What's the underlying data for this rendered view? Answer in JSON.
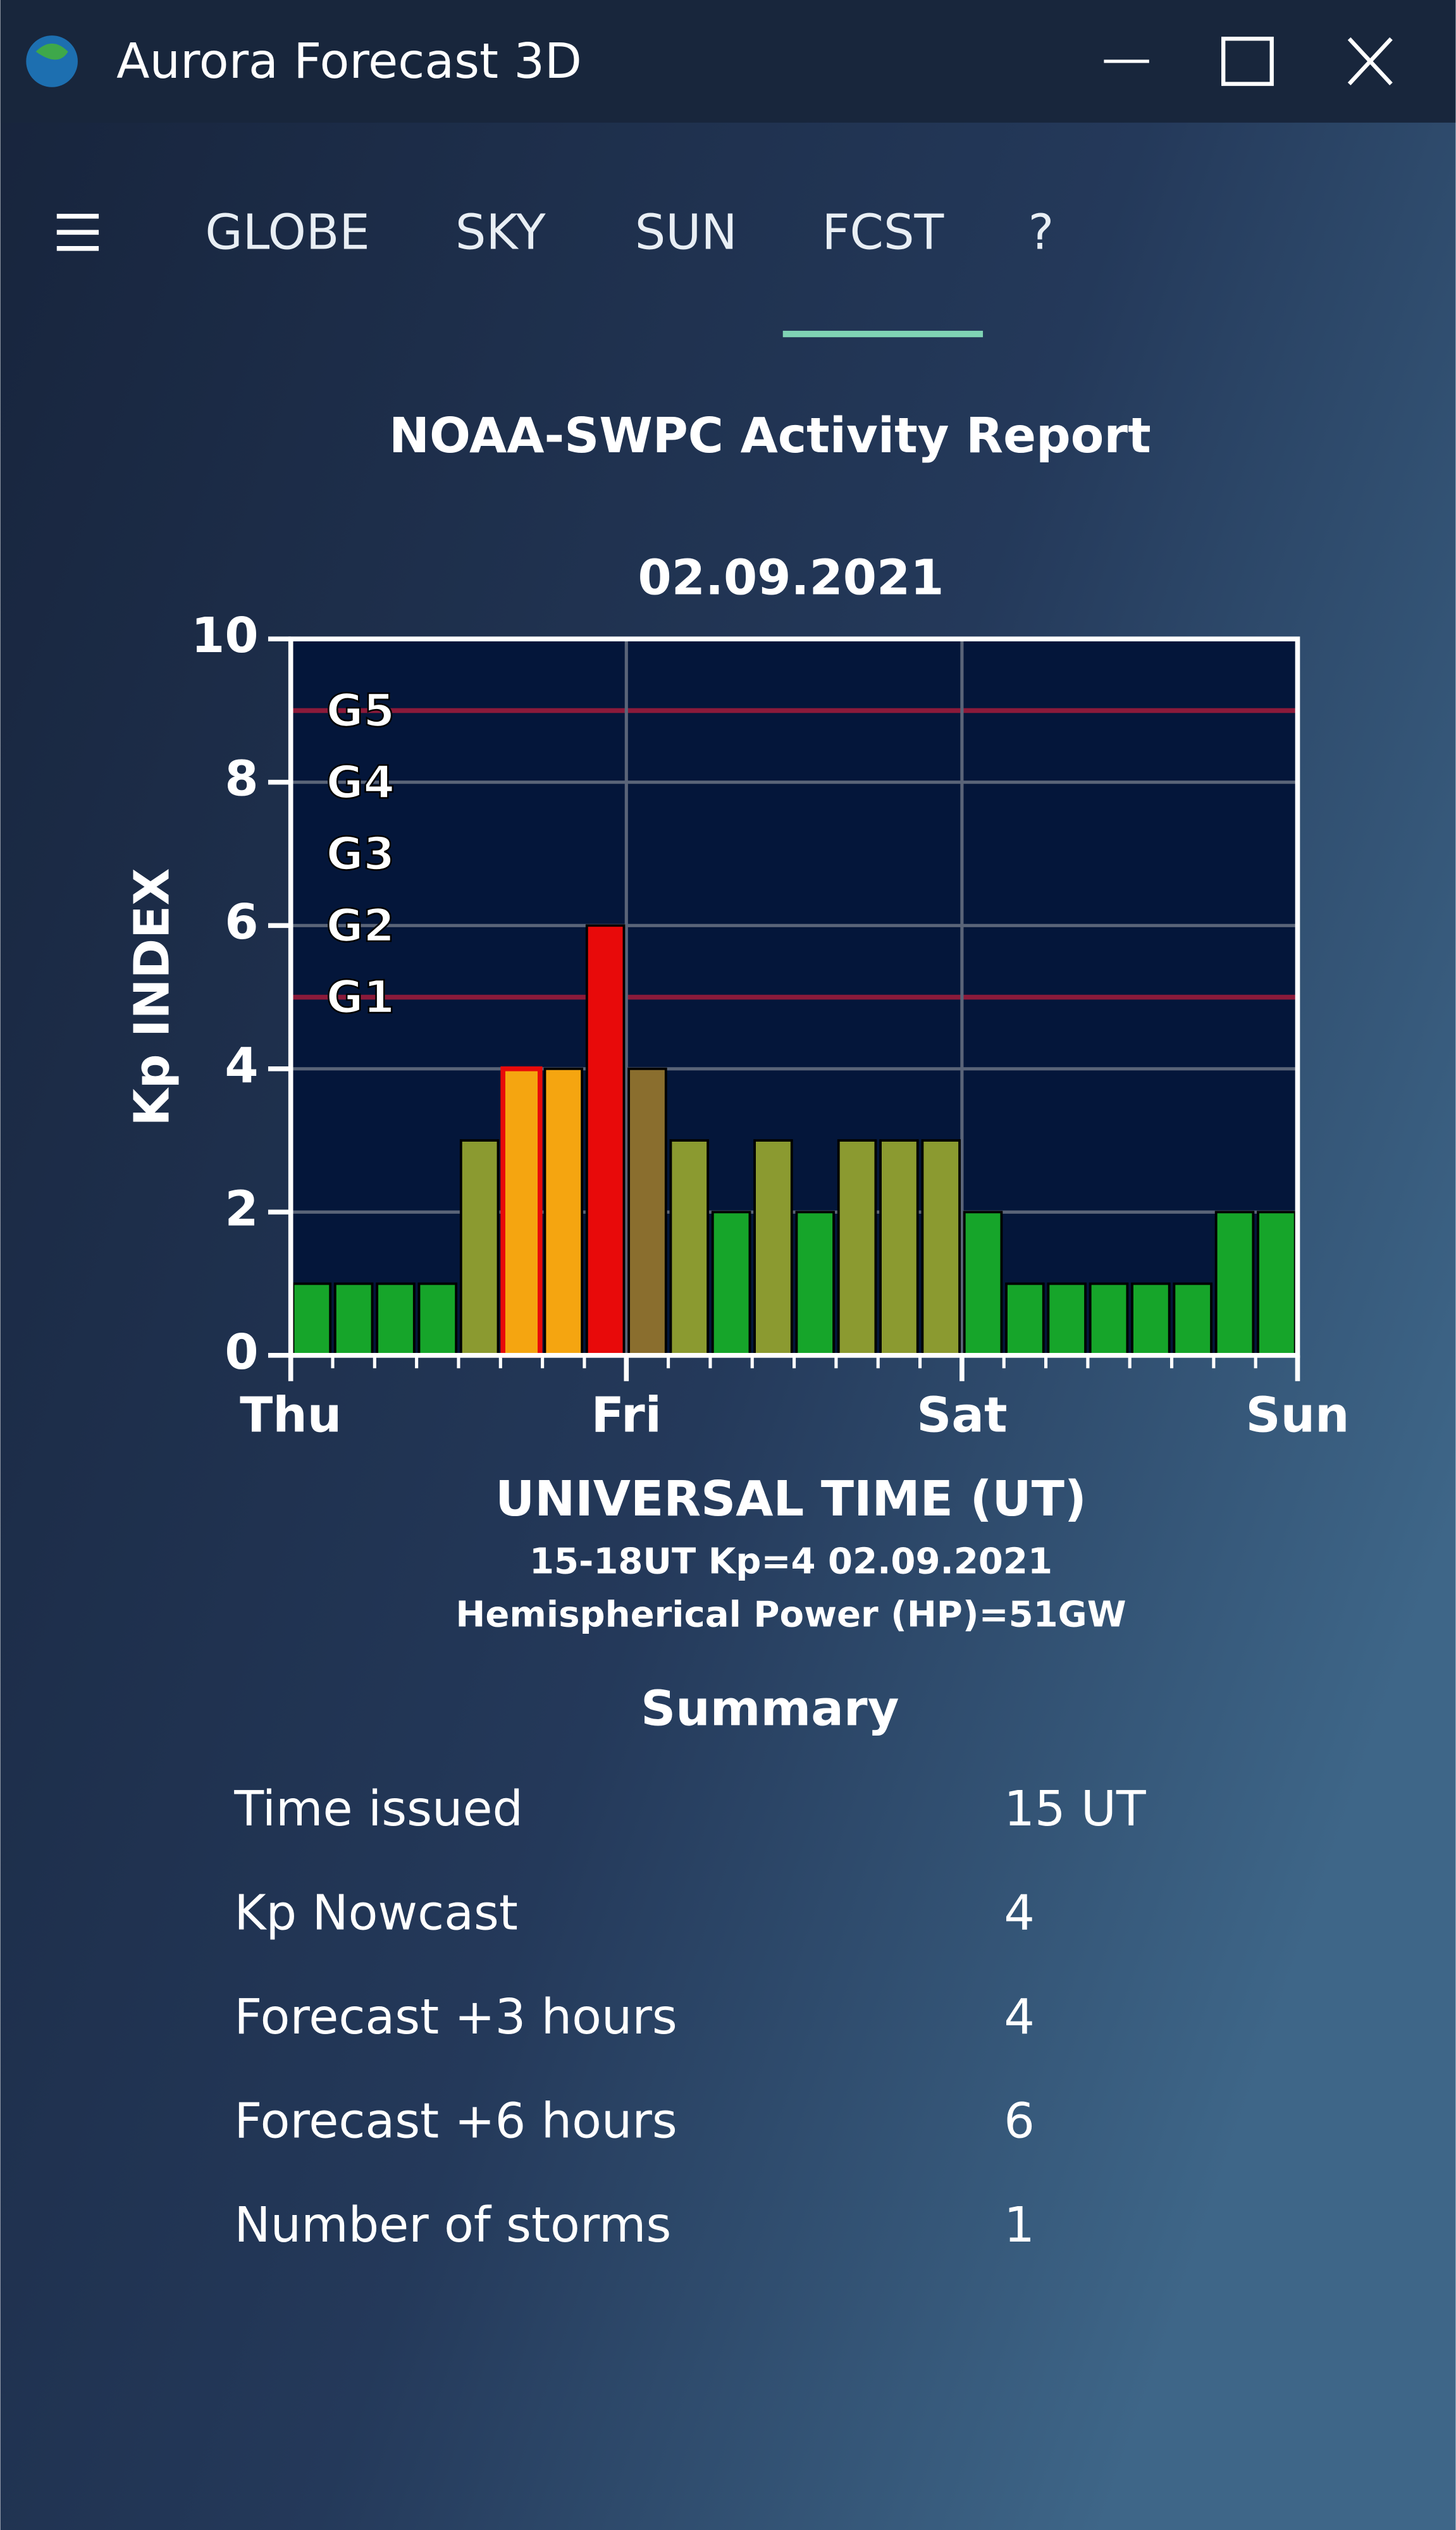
{
  "window": {
    "title": "Aurora Forecast 3D"
  },
  "nav": {
    "tabs": [
      "GLOBE",
      "SKY",
      "SUN",
      "FCST",
      "?"
    ],
    "active": 3
  },
  "report_title": "NOAA-SWPC Activity Report",
  "chart_data": {
    "type": "bar",
    "title": "02.09.2021",
    "ylabel": "Kp INDEX",
    "xlabel": "UNIVERSAL TIME (UT)",
    "notes": [
      "15-18UT Kp=4 02.09.2021",
      "Hemispherical Power (HP)=51GW"
    ],
    "categories": [
      null,
      null,
      null,
      null,
      null,
      null,
      null,
      null,
      null,
      null,
      null,
      null,
      null,
      null,
      null,
      null,
      null,
      null,
      null,
      null,
      null,
      null,
      null,
      null
    ],
    "values": [
      1,
      1,
      1,
      1,
      3,
      4,
      4,
      6,
      4,
      3,
      2,
      3,
      2,
      3,
      3,
      3,
      2,
      1,
      1,
      1,
      1,
      1,
      2,
      2
    ],
    "colors": [
      "#16a52a",
      "#16a52a",
      "#16a52a",
      "#16a52a",
      "#8b9a30",
      "#f5a510",
      "#f5a510",
      "#e80a0a",
      "#8a6e2e",
      "#8b9a30",
      "#16a52a",
      "#8b9a30",
      "#16a52a",
      "#8b9a30",
      "#8b9a30",
      "#8b9a30",
      "#16a52a",
      "#16a52a",
      "#16a52a",
      "#16a52a",
      "#16a52a",
      "#16a52a",
      "#16a52a",
      "#16a52a"
    ],
    "outline_colors": [
      "#000000",
      "#000000",
      "#000000",
      "#000000",
      "#000000",
      "#e80a0a",
      "#000000",
      "#000000",
      "#000000",
      "#000000",
      "#000000",
      "#000000",
      "#000000",
      "#000000",
      "#000000",
      "#000000",
      "#000000",
      "#000000",
      "#000000",
      "#000000",
      "#000000",
      "#000000",
      "#000000",
      "#000000"
    ],
    "xtick_labels": [
      "Thu",
      "Fri",
      "Sat",
      "Sun"
    ],
    "ylim": [
      0,
      10
    ],
    "yticks": [
      0,
      2,
      4,
      6,
      8,
      10
    ],
    "grid": true,
    "storm_levels": [
      {
        "label": "G1",
        "value": 5
      },
      {
        "label": "G2",
        "value": 6
      },
      {
        "label": "G3",
        "value": 7
      },
      {
        "label": "G4",
        "value": 8
      },
      {
        "label": "G5",
        "value": 9
      }
    ],
    "threshold_lines": [
      5,
      9
    ],
    "threshold_color": "#8b1a3a"
  },
  "summary": {
    "title": "Summary",
    "rows": [
      [
        "Time issued",
        "15 UT"
      ],
      [
        "Kp Nowcast",
        "4"
      ],
      [
        "Forecast +3 hours",
        "4"
      ],
      [
        "Forecast +6 hours",
        "6"
      ],
      [
        "Number of storms",
        "1"
      ]
    ]
  }
}
